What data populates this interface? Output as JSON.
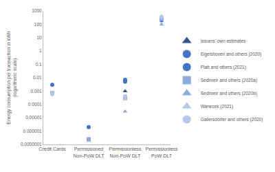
{
  "chart_data": {
    "type": "scatter",
    "y_label": "Energy consumption per transaction in kWh (logarithmic scale)",
    "categories": [
      "Credit Cards",
      "Permissioned Non-PoW DLT",
      "Permissionless Non-PoW DLT",
      "Permissionless PoW DLT"
    ],
    "log": "y",
    "grid": false,
    "legend": "right",
    "ylim": [
      1e-07,
      1000
    ],
    "yticks": [
      {
        "value": 1e-07,
        "label": "0.0000001"
      },
      {
        "value": 1e-06,
        "label": "0.000001"
      },
      {
        "value": 1e-05,
        "label": "0.00001"
      },
      {
        "value": 0.0001,
        "label": "0.0001"
      },
      {
        "value": 0.001,
        "label": "0.001"
      },
      {
        "value": 0.01,
        "label": "0.01"
      },
      {
        "value": 0.1,
        "label": "0.1"
      },
      1,
      10,
      100,
      1000
    ],
    "series": [
      {
        "name": "Issuers' own estimates",
        "color": "#2f5597",
        "marker": "triangle-up",
        "values": [
          null,
          null,
          0.001,
          300
        ]
      },
      {
        "name": "Eigelshoven and others (2020)",
        "color": "#4472c4",
        "marker": "circle",
        "values": [
          0.003,
          null,
          0.005,
          250
        ]
      },
      {
        "name": "Platt and others (2021)",
        "color": "#4472c4",
        "marker": "circle",
        "values": [
          null,
          2e-06,
          0.007,
          200
        ]
      },
      {
        "name": "Sedlmeir and others (2020a)",
        "color": "#8faadc",
        "marker": "square",
        "values": [
          0.0007,
          2.5e-07,
          0.0003,
          250
        ]
      },
      {
        "name": "Sedlmeir and others (2020b)",
        "color": "#8faadc",
        "marker": "triangle-up",
        "values": [
          null,
          2e-07,
          3e-05,
          100
        ]
      },
      {
        "name": "Wanecek (2021)",
        "color": "#b4c7e7",
        "marker": "triangle-up",
        "values": [
          null,
          null,
          0.00025,
          400
        ]
      },
      {
        "name": "Gallersdörfer and others (2020)",
        "color": "#b4c7e7",
        "marker": "circle",
        "values": [
          0.0006,
          null,
          0.0004,
          350
        ]
      }
    ]
  }
}
